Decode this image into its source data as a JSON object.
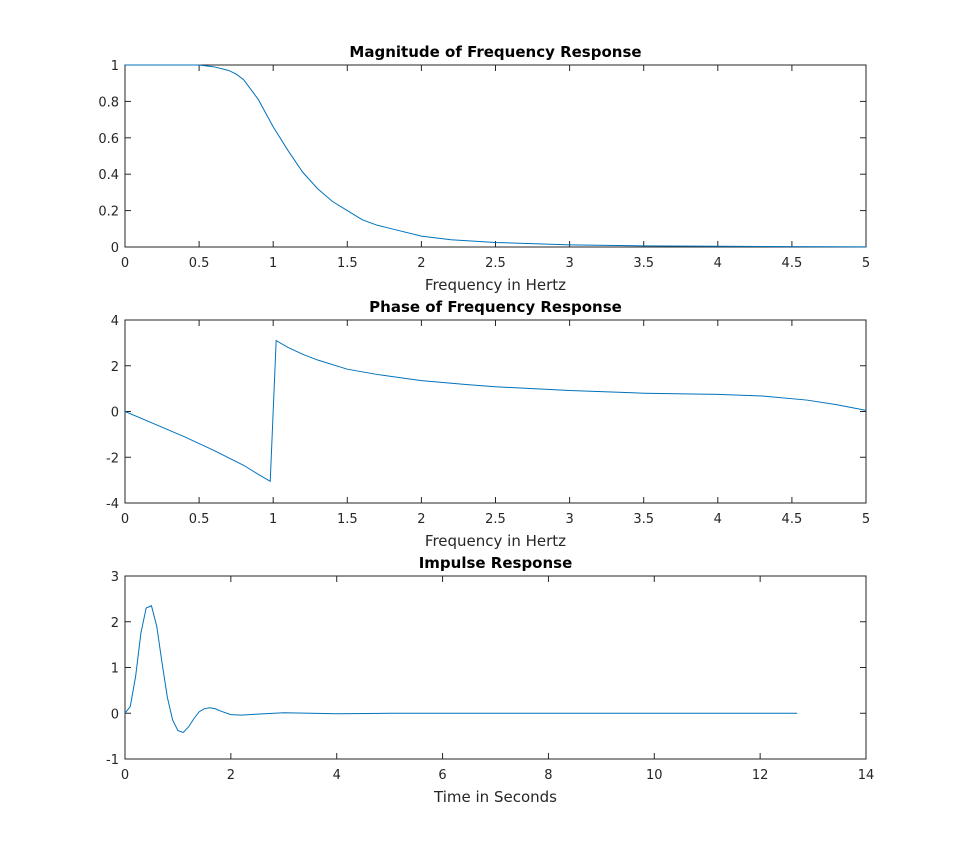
{
  "figure": {
    "line_color": "#0072BD",
    "axis_color": "#262626"
  },
  "chart_data": [
    {
      "type": "line",
      "title": "Magnitude of Frequency Response",
      "xlabel": "Frequency in Hertz",
      "ylabel": "",
      "xlim": [
        0,
        5
      ],
      "ylim": [
        0,
        1
      ],
      "xticks": [
        0,
        0.5,
        1,
        1.5,
        2,
        2.5,
        3,
        3.5,
        4,
        4.5,
        5
      ],
      "xtick_labels": [
        "0",
        "0.5",
        "1",
        "1.5",
        "2",
        "2.5",
        "3",
        "3.5",
        "4",
        "4.5",
        "5"
      ],
      "yticks": [
        0,
        0.2,
        0.4,
        0.6,
        0.8,
        1
      ],
      "ytick_labels": [
        "0",
        "0.2",
        "0.4",
        "0.6",
        "0.8",
        "1"
      ],
      "grid": false,
      "series": [
        {
          "x": [
            0,
            0.1,
            0.2,
            0.3,
            0.4,
            0.5,
            0.6,
            0.7,
            0.75,
            0.8,
            0.9,
            1.0,
            1.1,
            1.2,
            1.3,
            1.4,
            1.5,
            1.6,
            1.7,
            1.8,
            2.0,
            2.2,
            2.5,
            3.0,
            3.5,
            4.0,
            4.5,
            5.0
          ],
          "y": [
            1.0,
            1.0,
            1.0,
            1.0,
            1.0,
            1.0,
            0.99,
            0.97,
            0.95,
            0.92,
            0.81,
            0.66,
            0.53,
            0.41,
            0.32,
            0.25,
            0.2,
            0.15,
            0.12,
            0.1,
            0.06,
            0.04,
            0.025,
            0.012,
            0.006,
            0.004,
            0.002,
            0.001
          ]
        }
      ]
    },
    {
      "type": "line",
      "title": "Phase of Frequency Response",
      "xlabel": "Frequency in Hertz",
      "ylabel": "",
      "xlim": [
        0,
        5
      ],
      "ylim": [
        -4,
        4
      ],
      "xticks": [
        0,
        0.5,
        1,
        1.5,
        2,
        2.5,
        3,
        3.5,
        4,
        4.5,
        5
      ],
      "xtick_labels": [
        "0",
        "0.5",
        "1",
        "1.5",
        "2",
        "2.5",
        "3",
        "3.5",
        "4",
        "4.5",
        "5"
      ],
      "yticks": [
        -4,
        -2,
        0,
        2,
        4
      ],
      "ytick_labels": [
        "-4",
        "-2",
        "0",
        "2",
        "4"
      ],
      "grid": false,
      "series": [
        {
          "x": [
            0,
            0.2,
            0.4,
            0.6,
            0.8,
            0.9,
            0.98,
            1.02,
            1.1,
            1.2,
            1.3,
            1.5,
            1.7,
            2.0,
            2.3,
            2.5,
            3.0,
            3.5,
            4.0,
            4.3,
            4.6,
            4.8,
            5.0
          ],
          "y": [
            0.0,
            -0.55,
            -1.1,
            -1.7,
            -2.35,
            -2.75,
            -3.05,
            3.1,
            2.8,
            2.5,
            2.25,
            1.85,
            1.62,
            1.35,
            1.18,
            1.08,
            0.92,
            0.8,
            0.75,
            0.68,
            0.5,
            0.3,
            0.05
          ]
        }
      ]
    },
    {
      "type": "line",
      "title": "Impulse Response",
      "xlabel": "Time in Seconds",
      "ylabel": "",
      "xlim": [
        0,
        14
      ],
      "ylim": [
        -1,
        3
      ],
      "xticks": [
        0,
        2,
        4,
        6,
        8,
        10,
        12,
        14
      ],
      "xtick_labels": [
        "0",
        "2",
        "4",
        "6",
        "8",
        "10",
        "12",
        "14"
      ],
      "yticks": [
        -1,
        0,
        1,
        2,
        3
      ],
      "ytick_labels": [
        "-1",
        "0",
        "1",
        "2",
        "3"
      ],
      "grid": false,
      "series": [
        {
          "x": [
            0,
            0.1,
            0.2,
            0.3,
            0.4,
            0.5,
            0.6,
            0.7,
            0.8,
            0.9,
            1.0,
            1.1,
            1.2,
            1.3,
            1.4,
            1.5,
            1.6,
            1.7,
            1.8,
            2.0,
            2.2,
            2.5,
            3.0,
            3.5,
            4.0,
            5.0,
            6.0,
            7.0,
            8.0,
            9.0,
            10.0,
            11.0,
            12.0,
            12.7
          ],
          "y": [
            0.0,
            0.15,
            0.8,
            1.75,
            2.3,
            2.35,
            1.9,
            1.1,
            0.35,
            -0.15,
            -0.38,
            -0.42,
            -0.3,
            -0.12,
            0.03,
            0.1,
            0.12,
            0.1,
            0.05,
            -0.03,
            -0.04,
            -0.02,
            0.01,
            0.0,
            -0.01,
            0.0,
            0.0,
            0.0,
            0.0,
            0.0,
            0.0,
            0.0,
            0.0,
            0.0
          ]
        }
      ]
    }
  ]
}
